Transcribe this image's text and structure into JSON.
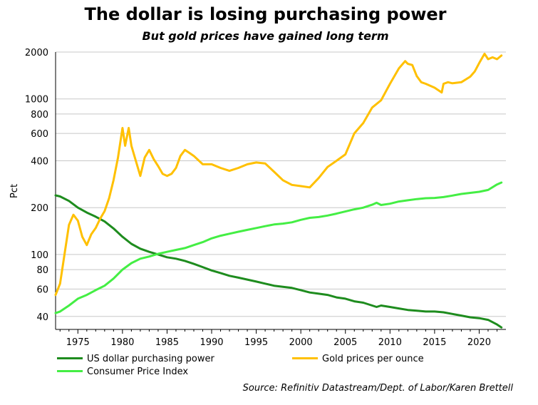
{
  "chart_data": {
    "type": "line",
    "title": "The dollar is losing purchasing power",
    "subtitle": "But gold prices have gained long term",
    "ylabel": "Pct",
    "xlabel": "",
    "yscale": "log",
    "xlim": [
      1972.5,
      2023
    ],
    "ylim": [
      33,
      2000
    ],
    "x_ticks": [
      1975,
      1980,
      1985,
      1990,
      1995,
      2000,
      2005,
      2010,
      2015,
      2020
    ],
    "y_ticks": [
      40,
      60,
      80,
      100,
      200,
      400,
      600,
      800,
      1000,
      2000
    ],
    "grid": true,
    "legend_position": "bottom",
    "source": "Source: Refinitiv Datastream/Dept. of Labor/Karen Brettell",
    "series": [
      {
        "name": "US dollar purchasing power",
        "color": "#1e8c1e",
        "x": [
          1972.5,
          1973,
          1974,
          1975,
          1976,
          1977,
          1978,
          1979,
          1980,
          1981,
          1982,
          1983,
          1984,
          1985,
          1986,
          1987,
          1988,
          1989,
          1990,
          1991,
          1992,
          1993,
          1994,
          1995,
          1996,
          1997,
          1998,
          1999,
          2000,
          2001,
          2002,
          2003,
          2004,
          2005,
          2006,
          2007,
          2008,
          2008.5,
          2009,
          2010,
          2011,
          2012,
          2013,
          2014,
          2015,
          2016,
          2017,
          2018,
          2019,
          2020,
          2021,
          2022,
          2022.5
        ],
        "values": [
          240,
          236,
          221,
          200,
          186,
          175,
          163,
          147,
          130,
          117,
          109,
          104,
          100,
          96,
          94,
          91,
          87,
          83,
          79,
          76,
          73,
          71,
          69,
          67,
          65,
          63,
          62,
          61,
          59,
          57,
          56,
          55,
          53,
          52,
          50,
          49,
          47,
          46,
          47,
          46,
          45,
          44,
          43.5,
          43,
          43,
          42.5,
          41.5,
          40.5,
          39.5,
          39,
          38,
          35.5,
          34
        ]
      },
      {
        "name": "Gold prices per ounce",
        "color": "#ffc000",
        "x": [
          1972.5,
          1973,
          1973.5,
          1974,
          1974.5,
          1975,
          1975.5,
          1976,
          1976.5,
          1977,
          1977.5,
          1978,
          1978.5,
          1979,
          1979.5,
          1980,
          1980.3,
          1980.7,
          1981,
          1981.5,
          1982,
          1982.5,
          1983,
          1983.5,
          1984,
          1984.5,
          1985,
          1985.5,
          1986,
          1986.5,
          1987,
          1987.5,
          1988,
          1989,
          1990,
          1991,
          1992,
          1993,
          1994,
          1995,
          1996,
          1997,
          1998,
          1999,
          2000,
          2001,
          2002,
          2003,
          2004,
          2005,
          2006,
          2007,
          2008,
          2009,
          2010,
          2011,
          2011.7,
          2012,
          2012.5,
          2013,
          2013.5,
          2014,
          2015,
          2015.8,
          2016,
          2016.5,
          2017,
          2018,
          2019,
          2019.5,
          2020,
          2020.6,
          2021,
          2021.5,
          2022,
          2022.5
        ],
        "values": [
          55,
          65,
          100,
          155,
          180,
          165,
          130,
          115,
          135,
          148,
          170,
          190,
          230,
          300,
          420,
          650,
          500,
          650,
          500,
          400,
          320,
          420,
          470,
          410,
          370,
          330,
          320,
          330,
          360,
          430,
          470,
          450,
          430,
          380,
          380,
          360,
          345,
          360,
          380,
          390,
          385,
          340,
          300,
          280,
          275,
          270,
          310,
          365,
          400,
          440,
          600,
          700,
          880,
          980,
          1250,
          1570,
          1750,
          1680,
          1650,
          1400,
          1280,
          1250,
          1180,
          1100,
          1250,
          1280,
          1260,
          1280,
          1390,
          1500,
          1700,
          1950,
          1800,
          1850,
          1800,
          1900
        ]
      },
      {
        "name": "Consumer Price Index",
        "color": "#44ee44",
        "x": [
          1972.5,
          1973,
          1974,
          1975,
          1976,
          1977,
          1978,
          1979,
          1980,
          1981,
          1982,
          1983,
          1984,
          1985,
          1986,
          1987,
          1988,
          1989,
          1990,
          1991,
          1992,
          1993,
          1994,
          1995,
          1996,
          1997,
          1998,
          1999,
          2000,
          2001,
          2002,
          2003,
          2004,
          2005,
          2006,
          2007,
          2008,
          2008.5,
          2009,
          2010,
          2011,
          2012,
          2013,
          2014,
          2015,
          2016,
          2017,
          2018,
          2019,
          2020,
          2021,
          2022,
          2022.5
        ],
        "values": [
          42,
          43,
          47,
          52,
          55,
          59,
          63,
          70,
          80,
          88,
          94,
          97,
          101,
          104,
          107,
          110,
          115,
          120,
          127,
          132,
          136,
          140,
          144,
          148,
          152,
          156,
          158,
          161,
          167,
          172,
          174,
          178,
          183,
          189,
          195,
          200,
          209,
          215,
          208,
          212,
          219,
          223,
          227,
          230,
          231,
          234,
          239,
          245,
          249,
          253,
          260,
          282,
          290
        ]
      }
    ]
  }
}
